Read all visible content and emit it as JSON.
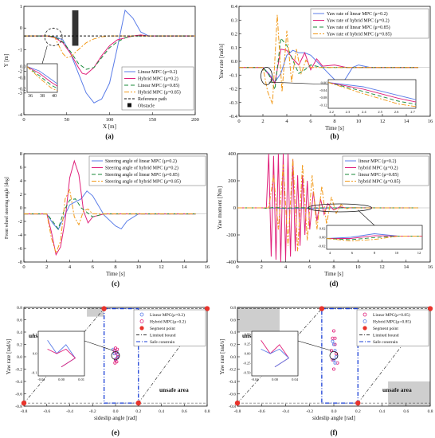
{
  "colors": {
    "blue": "#5b7de8",
    "magenta": "#e0207a",
    "green": "#1a8a3a",
    "orange": "#f29a1a",
    "black": "#111111",
    "gray": "#bdbdbd",
    "red": "#e8332b"
  },
  "chart_data": [
    {
      "id": "a",
      "panel_label": "(a)",
      "type": "line",
      "xlabel": "X [m]",
      "ylabel": "Y [m]",
      "xlim": [
        0,
        220
      ],
      "ylim": [
        -4,
        1.5
      ],
      "xticks": [
        "0",
        "50",
        "100",
        "150",
        "200"
      ],
      "yticks": [
        "1",
        "0",
        "-1",
        "-2",
        "-3",
        "-4"
      ],
      "obstacle": {
        "x": [
          62,
          70
        ],
        "y": [
          -0.5,
          1.3
        ]
      },
      "legend": [
        "Linear MPC (μ=0.2)",
        "Hybrid MPC (μ=0.2)",
        "Linear MPC (μ=0.85)",
        "Hybrid MPC (μ=0.85)",
        "Reference path",
        "Obstacle"
      ],
      "series": [
        {
          "name": "Linear MPC (μ=0.2)",
          "color": "blue",
          "x": [
            0,
            30,
            40,
            50,
            60,
            70,
            80,
            90,
            100,
            110,
            120,
            130,
            140,
            150,
            160,
            170,
            180,
            200,
            220
          ],
          "y": [
            0,
            0,
            -0.05,
            -0.2,
            -0.9,
            -1.9,
            -2.9,
            -3.4,
            -3.2,
            -2.4,
            -0.6,
            1.3,
            0.9,
            0.2,
            0,
            0,
            0,
            0,
            0
          ]
        },
        {
          "name": "Hybrid MPC (μ=0.2)",
          "color": "magenta",
          "x": [
            0,
            30,
            40,
            50,
            60,
            70,
            75,
            80,
            90,
            100,
            110,
            120,
            130,
            140,
            150,
            160,
            170,
            180,
            200,
            220
          ],
          "y": [
            0,
            0,
            -0.1,
            -0.35,
            -0.9,
            -1.6,
            -1.9,
            -1.95,
            -1.6,
            -1.0,
            -0.5,
            -0.2,
            -0.1,
            0,
            0.05,
            0,
            0,
            0,
            0,
            0
          ]
        },
        {
          "name": "Linear MPC (μ=0.85)",
          "color": "green",
          "dash": "5,3",
          "x": [
            0,
            30,
            40,
            50,
            60,
            70,
            80,
            90,
            100,
            110,
            120,
            130,
            140,
            150,
            160,
            180,
            200,
            220
          ],
          "y": [
            0,
            0,
            -0.05,
            -0.3,
            -0.8,
            -1.4,
            -1.7,
            -1.6,
            -1.1,
            -0.6,
            -0.3,
            -0.1,
            0,
            0,
            0,
            0,
            0,
            0
          ]
        },
        {
          "name": "Hybrid MPC (μ=0.85)",
          "color": "orange",
          "dash": "6,2,2,2",
          "x": [
            0,
            30,
            40,
            45,
            50,
            55,
            60,
            70,
            80,
            90,
            100,
            110,
            120,
            130,
            140,
            160,
            180,
            220
          ],
          "y": [
            0,
            0,
            -0.1,
            -0.5,
            -0.9,
            -1.1,
            -1.05,
            -0.7,
            -0.35,
            -0.15,
            -0.05,
            0,
            0,
            0,
            0,
            0,
            0,
            0
          ]
        },
        {
          "name": "Reference path",
          "color": "black",
          "dash": "3,2",
          "x": [
            0,
            220
          ],
          "y": [
            0,
            0
          ]
        }
      ],
      "inset": {
        "xticks": [
          "36",
          "38",
          "40"
        ],
        "yticks": [
          "0.0",
          "-0.1",
          "-0.2"
        ]
      }
    },
    {
      "id": "b",
      "panel_label": "(b)",
      "type": "line",
      "xlabel": "Time [s]",
      "ylabel": "Yaw rate [rad/s]",
      "xlim": [
        0,
        16
      ],
      "ylim": [
        -0.4,
        0.5
      ],
      "xticks": [
        "0",
        "2",
        "4",
        "6",
        "8",
        "10",
        "12",
        "14",
        "16"
      ],
      "yticks": [
        "0.4",
        "0.3",
        "0.2",
        "0.1",
        "0.0",
        "-0.1",
        "-0.2",
        "-0.3",
        "-0.4"
      ],
      "legend": [
        "Yaw rate of linear MPC (μ=0.2)",
        "Yaw rate of hybrid MPC (μ=0.2)",
        "Yaw rate of linear MPC (μ=0.85)",
        "Yaw rate of hybrid MPC (μ=0.85)"
      ],
      "series": [
        {
          "name": "Yaw rate of linear MPC (μ=0.2)",
          "color": "blue",
          "x": [
            0,
            2,
            2.5,
            3,
            3.5,
            4,
            4.5,
            5,
            5.5,
            6,
            7,
            8,
            8.5,
            9,
            9.5,
            10,
            11,
            12,
            15
          ],
          "y": [
            0,
            0,
            -0.05,
            -0.12,
            -0.05,
            0.1,
            0.14,
            0.12,
            0.12,
            0.1,
            0.0,
            -0.1,
            -0.15,
            -0.08,
            0,
            0.02,
            0,
            0,
            0
          ]
        },
        {
          "name": "Yaw rate of hybrid MPC (μ=0.2)",
          "color": "magenta",
          "x": [
            0,
            2,
            2.5,
            3,
            3.5,
            4,
            4.5,
            5,
            5.5,
            6,
            6.5,
            7,
            8,
            9,
            10,
            15
          ],
          "y": [
            0,
            0,
            -0.06,
            -0.13,
            0.15,
            0.14,
            0.07,
            0.02,
            0.12,
            -0.02,
            0.07,
            0.01,
            0.02,
            0,
            0,
            0
          ]
        },
        {
          "name": "Yaw rate of linear MPC (μ=0.85)",
          "color": "green",
          "dash": "5,3",
          "x": [
            0,
            2,
            2.5,
            3,
            3.5,
            4,
            4.5,
            5,
            5.5,
            6,
            7,
            8,
            15
          ],
          "y": [
            0,
            0,
            -0.06,
            -0.18,
            0.24,
            0.18,
            0.06,
            -0.05,
            -0.02,
            0.02,
            0,
            0,
            0
          ]
        },
        {
          "name": "Yaw rate of hybrid MPC (μ=0.85)",
          "color": "orange",
          "dash": "6,2,2,2",
          "x": [
            0,
            2,
            2.4,
            2.8,
            3.2,
            3.6,
            4.0,
            4.4,
            4.8,
            5.2,
            5.6,
            6,
            7,
            15
          ],
          "y": [
            0,
            0,
            -0.2,
            -0.3,
            0.43,
            -0.2,
            0.3,
            -0.12,
            0.15,
            -0.05,
            0.06,
            0,
            0,
            0
          ]
        }
      ],
      "inset": {
        "xticks": [
          "2.2",
          "2.3",
          "2.4",
          "2.5",
          "2.6",
          "2.7"
        ],
        "yticks": [
          "0.00",
          "-0.04",
          "-0.08",
          "-0.12"
        ]
      }
    },
    {
      "id": "c",
      "panel_label": "(c)",
      "type": "line",
      "xlabel": "Time [s]",
      "ylabel": "Front wheel steering angle [deg]",
      "xlim": [
        0,
        16
      ],
      "ylim": [
        -8,
        10
      ],
      "xticks": [
        "0",
        "2",
        "4",
        "6",
        "8",
        "10",
        "12",
        "14",
        "16"
      ],
      "yticks": [
        "8",
        "6",
        "4",
        "2",
        "0",
        "-2",
        "-4",
        "-6",
        "-8"
      ],
      "legend": [
        "Steering angle of linear MPC (μ=0.2)",
        "Steering angle of hybrid MPC (μ=0.2)",
        "Steering angle of linear MPC (μ=0.85)",
        "Steering angle of hybrid MPC (μ=0.85)"
      ],
      "series": [
        {
          "name": "Steering angle of linear MPC (μ=0.2)",
          "color": "blue",
          "x": [
            0,
            2,
            2.5,
            3,
            4,
            5,
            5.5,
            6,
            7,
            8,
            8.5,
            9,
            10,
            11,
            15
          ],
          "y": [
            0,
            0,
            -1.5,
            -2.6,
            1.5,
            2.5,
            3.8,
            3.0,
            -0.2,
            -2.0,
            -2.5,
            -1.2,
            0,
            0,
            0
          ]
        },
        {
          "name": "Steering angle of hybrid MPC (μ=0.2)",
          "color": "magenta",
          "x": [
            0,
            2,
            2.4,
            2.8,
            3.2,
            3.6,
            4.0,
            4.4,
            4.8,
            5.2,
            5.6,
            6,
            7,
            8,
            15
          ],
          "y": [
            0,
            0,
            -3,
            -6.8,
            -5.5,
            -1,
            6,
            8.8,
            6.5,
            0.5,
            -1.5,
            -0.5,
            0,
            0,
            0
          ]
        },
        {
          "name": "Steering angle of linear MPC (μ=0.85)",
          "color": "green",
          "dash": "5,3",
          "x": [
            0,
            2,
            2.5,
            3,
            3.5,
            4,
            4.5,
            5,
            6,
            7,
            15
          ],
          "y": [
            0,
            0,
            -1.2,
            -2.5,
            0.5,
            2.3,
            2.5,
            1.0,
            -0.5,
            0,
            0
          ]
        },
        {
          "name": "Steering angle of hybrid MPC (μ=0.85)",
          "color": "orange",
          "dash": "6,2,2,2",
          "x": [
            0,
            2,
            2.4,
            2.8,
            3.2,
            3.6,
            4.0,
            4.4,
            4.8,
            5.2,
            5.6,
            6,
            7,
            15
          ],
          "y": [
            0,
            0,
            -4,
            -6.5,
            -4.5,
            2.5,
            4.0,
            -0.5,
            -1.8,
            0.5,
            0.8,
            0,
            0,
            0
          ]
        }
      ]
    },
    {
      "id": "d",
      "panel_label": "(d)",
      "type": "line",
      "xlabel": "Time [s]",
      "ylabel": "Yaw moment [Nm]",
      "xlim": [
        0,
        16
      ],
      "ylim": [
        -500,
        500
      ],
      "xticks": [
        "0",
        "2",
        "4",
        "6",
        "8",
        "10",
        "12",
        "14",
        "16"
      ],
      "yticks": [
        "400",
        "200",
        "0",
        "-200",
        "-400"
      ],
      "legend": [
        "linear MPC (μ=0.2)",
        "hybrid MPC (μ=0.2)",
        "linear MPC (μ=0.85)",
        "hybrid MPC (μ=0.85)"
      ],
      "series": [
        {
          "name": "linear MPC (μ=0.2)",
          "color": "blue",
          "x": [
            0,
            2,
            3,
            4,
            6,
            8,
            10,
            12,
            15
          ],
          "y": [
            0,
            0,
            -2,
            -5,
            -5,
            0,
            2,
            0,
            0
          ]
        },
        {
          "name": "hybrid MPC (μ=0.2)",
          "color": "magenta",
          "x": [
            0,
            2.4,
            2.6,
            2.8,
            3.0,
            3.2,
            3.4,
            3.6,
            3.8,
            4.0,
            4.2,
            4.4,
            4.6,
            4.8,
            5.0,
            5.2,
            5.4,
            5.6,
            5.8,
            6.0,
            6.3,
            6.6,
            6.9,
            7.2,
            7.5,
            8.0,
            8.5,
            9.0,
            10,
            15
          ],
          "y": [
            0,
            0,
            500,
            -450,
            480,
            -480,
            500,
            -500,
            500,
            -480,
            500,
            -450,
            450,
            -400,
            300,
            -350,
            300,
            -250,
            250,
            -200,
            150,
            -120,
            80,
            -60,
            40,
            -20,
            10,
            0,
            0,
            0
          ]
        },
        {
          "name": "linear MPC (μ=0.85)",
          "color": "green",
          "dash": "5,3",
          "x": [
            0,
            2,
            2.5,
            3,
            4,
            5,
            6,
            8,
            15
          ],
          "y": [
            0,
            0,
            -5,
            5,
            -3,
            2,
            0,
            0,
            0
          ]
        },
        {
          "name": "hybrid MPC (μ=0.85)",
          "color": "orange",
          "dash": "6,2,2,2",
          "x": [
            0,
            2.6,
            3.0,
            3.4,
            3.8,
            4.2,
            4.6,
            5.0,
            5.4,
            5.8,
            6.2,
            6.6,
            7.0,
            7.4,
            7.8,
            8.2,
            8.6,
            9.0,
            9.5,
            10,
            15
          ],
          "y": [
            0,
            0,
            300,
            -200,
            400,
            -350,
            450,
            -400,
            400,
            -300,
            300,
            -200,
            200,
            -150,
            100,
            -50,
            30,
            -10,
            5,
            0,
            0
          ]
        }
      ],
      "inset": {
        "xticks": [
          "4",
          "6",
          "8",
          "10",
          "12"
        ],
        "yticks": [
          "0.02",
          "0.00",
          "-0.02"
        ]
      }
    },
    {
      "id": "e",
      "panel_label": "(e)",
      "type": "scatter",
      "xlabel": "sideslip angle [rad]",
      "ylabel": "Yaw rate [rad/s]",
      "xlim": [
        -0.8,
        0.8
      ],
      "ylim": [
        -0.8,
        0.8
      ],
      "xticks": [
        "-0.8",
        "-0.6",
        "-0.4",
        "-0.2",
        "0.0",
        "0.2",
        "0.4",
        "0.6",
        "0.8"
      ],
      "yticks": [
        "0.8",
        "0.6",
        "0.4",
        "0.2",
        "0.0",
        "-0.2",
        "-0.4",
        "-0.6",
        "-0.8"
      ],
      "unsafe_labels": [
        "unsafe area",
        "unsafe area"
      ],
      "legend": [
        "Linear MPC(μ=0.2)",
        "Hybrid MPC(μ=0.2)",
        "Segment point",
        "Limited bound",
        "Safe constrain"
      ],
      "segment_points": [
        [
          -0.1,
          0.78
        ],
        [
          0.8,
          0.78
        ],
        [
          -0.8,
          -0.75
        ],
        [
          0.2,
          -0.75
        ]
      ],
      "safe_box": {
        "x": [
          -0.1,
          0.2
        ],
        "y": [
          -0.75,
          0.78
        ]
      },
      "series": [
        {
          "name": "Linear MPC(μ=0.2)",
          "color": "blue",
          "x": [
            -0.02,
            -0.01,
            0.0,
            0.01,
            0.015,
            0.02
          ],
          "y": [
            0.12,
            0.05,
            -0.04,
            0.08,
            -0.02,
            0.03
          ]
        },
        {
          "name": "Hybrid MPC(μ=0.2)",
          "color": "magenta",
          "x": [
            -0.01,
            0.0,
            0.005,
            0.01,
            0.015,
            0.02,
            0.0,
            -0.005
          ],
          "y": [
            0.1,
            0.14,
            0.06,
            -0.08,
            0.12,
            0.0,
            -0.05,
            -0.1
          ]
        }
      ],
      "inset": {
        "xticks": [
          "-0.01",
          "0.00",
          "0.01"
        ],
        "yticks": [
          "0.1",
          "0.0",
          "-0.1"
        ]
      }
    },
    {
      "id": "f",
      "panel_label": "(f)",
      "type": "scatter",
      "xlabel": "sideslip angle [rad]",
      "ylabel": "Yaw rate [rad/s]",
      "xlim": [
        -0.8,
        0.8
      ],
      "ylim": [
        -0.8,
        0.8
      ],
      "xticks": [
        "-0.8",
        "-0.6",
        "-0.4",
        "-0.2",
        "0.0",
        "0.2",
        "0.4",
        "0.6",
        "0.8"
      ],
      "yticks": [
        "0.8",
        "0.6",
        "0.4",
        "0.2",
        "0.0",
        "-0.2",
        "-0.4",
        "-0.6",
        "-0.8"
      ],
      "unsafe_labels": [
        "unsafe area",
        "unsafe area"
      ],
      "legend": [
        "Linear MPC(μ=0.85)",
        "Hybrid MPC(μ=0.85)",
        "Segment point",
        "Limited bound",
        "Safe constrain"
      ],
      "segment_points": [
        [
          -0.1,
          0.78
        ],
        [
          0.8,
          0.78
        ],
        [
          -0.8,
          -0.75
        ],
        [
          0.2,
          -0.75
        ]
      ],
      "safe_box": {
        "x": [
          -0.1,
          0.2
        ],
        "y": [
          -0.75,
          0.78
        ]
      },
      "series": [
        {
          "name": "Linear MPC(μ=0.85)",
          "color": "magenta",
          "x": [
            -0.02,
            -0.01,
            0.0,
            0.01,
            0.02,
            0.03,
            0.0,
            -0.01,
            0.01
          ],
          "y": [
            0.1,
            0.3,
            0.42,
            0.2,
            0.05,
            -0.1,
            -0.2,
            -0.05,
            0.3
          ]
        },
        {
          "name": "Hybrid MPC(μ=0.85)",
          "color": "blue",
          "x": [
            -0.01,
            0.0,
            0.01,
            0.02,
            0.01,
            0.0
          ],
          "y": [
            0.25,
            0.2,
            0.1,
            0.0,
            -0.1,
            -0.05
          ]
        }
      ],
      "inset": {
        "xticks": [
          "-0.04",
          "0.00",
          "0.04"
        ],
        "yticks": [
          "0.50",
          "0.25",
          "0.00",
          "-0.25",
          "-0.50"
        ]
      }
    }
  ]
}
